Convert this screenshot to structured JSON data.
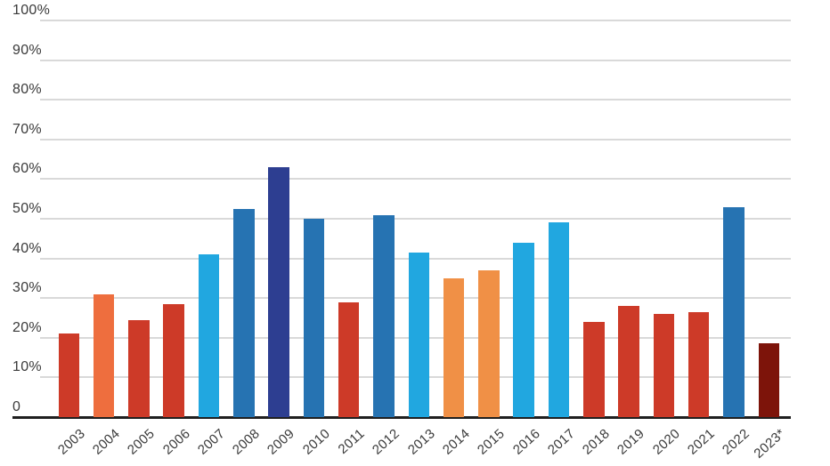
{
  "chart_data": {
    "type": "bar",
    "title": "",
    "xlabel": "",
    "ylabel": "",
    "categories": [
      "2003",
      "2004",
      "2005",
      "2006",
      "2007",
      "2008",
      "2009",
      "2010",
      "2011",
      "2012",
      "2013",
      "2014",
      "2015",
      "2016",
      "2017",
      "2018",
      "2019",
      "2020",
      "2021",
      "2022",
      "2023*"
    ],
    "values": [
      21,
      31,
      24.5,
      28.5,
      41,
      52.5,
      63,
      50,
      29,
      51,
      41.5,
      35,
      37,
      44,
      49,
      24,
      28,
      26,
      26.5,
      53,
      18.5
    ],
    "bar_colors": [
      "#cd3a28",
      "#ee6e3e",
      "#cd3a28",
      "#cd3a28",
      "#21a7e0",
      "#2673b2",
      "#2d3e91",
      "#2673b2",
      "#cd3a28",
      "#2673b2",
      "#21a7e0",
      "#f09046",
      "#f09046",
      "#21a7e0",
      "#21a7e0",
      "#cd3a28",
      "#cd3a28",
      "#cd3a28",
      "#cd3a28",
      "#2673b2",
      "#7d140a"
    ],
    "palette": {
      "red": "#cd3a28",
      "orange": "#ee6e3e",
      "light_orange": "#f09046",
      "light_blue": "#21a7e0",
      "medium_blue": "#2673b2",
      "navy": "#2d3e91",
      "dark_maroon": "#7d140a"
    },
    "ylim": [
      0,
      100
    ],
    "yticks": [
      {
        "label": "100%",
        "value": 100
      },
      {
        "label": "90%",
        "value": 90
      },
      {
        "label": "80%",
        "value": 80
      },
      {
        "label": "70%",
        "value": 70
      },
      {
        "label": "60%",
        "value": 60
      },
      {
        "label": "50%",
        "value": 50
      },
      {
        "label": "40%",
        "value": 40
      },
      {
        "label": "30%",
        "value": 30
      },
      {
        "label": "20%",
        "value": 20
      },
      {
        "label": "10%",
        "value": 10
      },
      {
        "label": "0",
        "value": 0
      }
    ],
    "grid": true,
    "legend": false,
    "gridline_color": "#d9d9d9",
    "axis_color": "#1f1f1f",
    "tick_label_color": "#3a3a3a"
  }
}
